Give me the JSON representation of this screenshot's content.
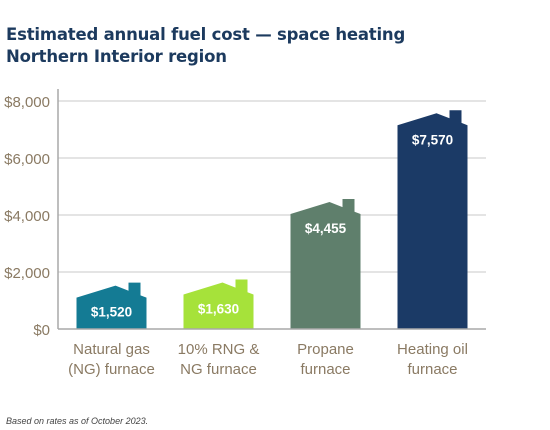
{
  "title": {
    "line1": "Estimated annual fuel cost — space heating",
    "line2": "Northern Interior region"
  },
  "footnote": "Based on rates as of October 2023.",
  "chart_data": {
    "type": "bar",
    "title": "Estimated annual fuel cost — space heating",
    "subtitle": "Northern Interior region",
    "categories": [
      [
        "Natural gas",
        "(NG) furnace"
      ],
      [
        "10% RNG &",
        "NG furnace"
      ],
      [
        "Propane",
        "furnace"
      ],
      [
        "Heating oil",
        "furnace"
      ]
    ],
    "values": [
      1520,
      1630,
      4455,
      7570
    ],
    "value_labels": [
      "$1,520",
      "$1,630",
      "$4,455",
      "$7,570"
    ],
    "bar_colors": [
      "#147b94",
      "#a6e23a",
      "#5f7f6c",
      "#1b3a66"
    ],
    "bar_shape": "house-icon",
    "ylim": [
      0,
      8000
    ],
    "yticks": [
      0,
      2000,
      4000,
      6000,
      8000
    ],
    "ytick_labels": [
      "$0",
      "$2,000",
      "$4,000",
      "$6,000",
      "$8,000"
    ],
    "grid": true,
    "xlabel": "",
    "ylabel": ""
  }
}
